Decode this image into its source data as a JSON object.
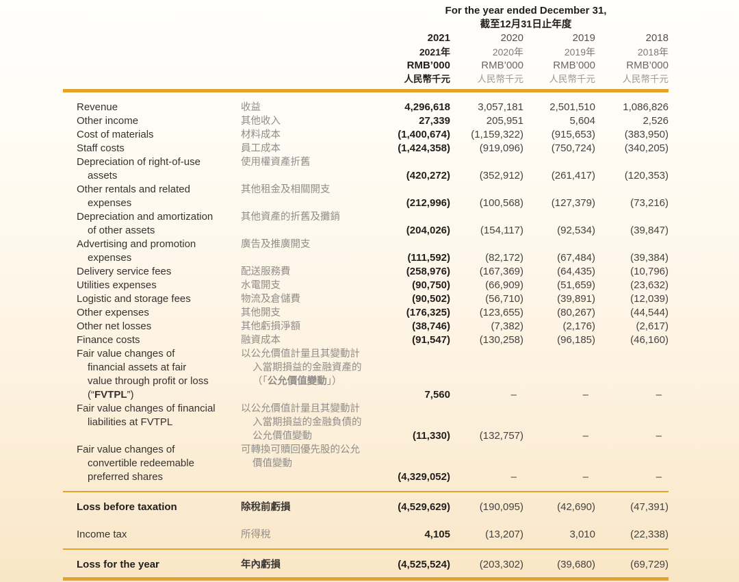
{
  "theme": {
    "accent": "#E0A42C",
    "bg_top": "#FFFFFE",
    "bg_mid": "#FDF3E2",
    "bg_bottom": "#F9E6C6"
  },
  "header": {
    "title_en": "For the year ended December 31,",
    "title_zh": "截至12月31日止年度",
    "columns": [
      {
        "year": "2021",
        "year_zh": "2021年",
        "unit": "RMB’000",
        "unit_zh": "人民幣千元",
        "bold": true
      },
      {
        "year": "2020",
        "year_zh": "2020年",
        "unit": "RMB’000",
        "unit_zh": "人民幣千元",
        "bold": false
      },
      {
        "year": "2019",
        "year_zh": "2019年",
        "unit": "RMB’000",
        "unit_zh": "人民幣千元",
        "bold": false
      },
      {
        "year": "2018",
        "year_zh": "2018年",
        "unit": "RMB’000",
        "unit_zh": "人民幣千元",
        "bold": false
      }
    ]
  },
  "rows": [
    {
      "en": "Revenue",
      "zh": "收益",
      "values": [
        "4,296,618",
        "3,057,181",
        "2,501,510",
        "1,086,826"
      ]
    },
    {
      "en": "Other income",
      "zh": "其他收入",
      "values": [
        "27,339",
        "205,951",
        "5,604",
        "2,526"
      ]
    },
    {
      "en": "Cost of materials",
      "zh": "材料成本",
      "values": [
        "(1,400,674)",
        "(1,159,322)",
        "(915,653)",
        "(383,950)"
      ]
    },
    {
      "en": "Staff costs",
      "zh": "員工成本",
      "values": [
        "(1,424,358)",
        "(919,096)",
        "(750,724)",
        "(340,205)"
      ]
    },
    {
      "en": "Depreciation of right-of-use\nassets",
      "zh": "使用權資產折舊",
      "values": [
        "(420,272)",
        "(352,912)",
        "(261,417)",
        "(120,353)"
      ]
    },
    {
      "en": "Other rentals and related\nexpenses",
      "zh": "其他租金及相關開支",
      "values": [
        "(212,996)",
        "(100,568)",
        "(127,379)",
        "(73,216)"
      ]
    },
    {
      "en": "Depreciation and amortization\nof other assets",
      "zh": "其他資產的折舊及攤銷",
      "values": [
        "(204,026)",
        "(154,117)",
        "(92,534)",
        "(39,847)"
      ]
    },
    {
      "en": "Advertising and promotion\nexpenses",
      "zh": "廣告及推廣開支",
      "values": [
        "(111,592)",
        "(82,172)",
        "(67,484)",
        "(39,384)"
      ]
    },
    {
      "en": "Delivery service fees",
      "zh": "配送服務費",
      "values": [
        "(258,976)",
        "(167,369)",
        "(64,435)",
        "(10,796)"
      ]
    },
    {
      "en": "Utilities expenses",
      "zh": "水電開支",
      "values": [
        "(90,750)",
        "(66,909)",
        "(51,659)",
        "(23,632)"
      ]
    },
    {
      "en": "Logistic and storage fees",
      "zh": "物流及倉儲費",
      "values": [
        "(90,502)",
        "(56,710)",
        "(39,891)",
        "(12,039)"
      ]
    },
    {
      "en": "Other expenses",
      "zh": "其他開支",
      "values": [
        "(176,325)",
        "(123,655)",
        "(80,267)",
        "(44,544)"
      ]
    },
    {
      "en": "Other net losses",
      "zh": "其他虧損淨額",
      "values": [
        "(38,746)",
        "(7,382)",
        "(2,176)",
        "(2,617)"
      ]
    },
    {
      "en": "Finance costs",
      "zh": "融資成本",
      "values": [
        "(91,547)",
        "(130,258)",
        "(96,185)",
        "(46,160)"
      ]
    },
    {
      "en": "Fair value changes of\nfinancial assets at fair\nvalue through profit or loss\n(“**FVTPL**”)",
      "zh": "以公允價值計量且其變動計\n入當期損益的金融資產的\n（「**公允價值變動**」）",
      "values": [
        "7,560",
        "–",
        "–",
        "–"
      ]
    },
    {
      "en": "Fair value changes of financial\nliabilities at FVTPL",
      "zh": "以公允價值計量且其變動計\n入當期損益的金融負債的\n公允價值變動",
      "values": [
        "(11,330)",
        "(132,757)",
        "–",
        "–"
      ]
    },
    {
      "en": "Fair value changes of\nconvertible redeemable\npreferred shares",
      "zh": "可轉換可贖回優先股的公允\n價值變動",
      "values": [
        "(4,329,052)",
        "–",
        "–",
        "–"
      ]
    }
  ],
  "totals": {
    "loss_before_tax": {
      "en": "Loss before taxation",
      "zh": "除稅前虧損",
      "bold": true,
      "values": [
        "(4,529,629)",
        "(190,095)",
        "(42,690)",
        "(47,391)"
      ]
    },
    "income_tax": {
      "en": "Income tax",
      "zh": "所得稅",
      "bold": false,
      "values": [
        "4,105",
        "(13,207)",
        "3,010",
        "(22,338)"
      ]
    },
    "loss_for_year": {
      "en": "Loss for the year",
      "zh": "年內虧損",
      "bold": true,
      "values": [
        "(4,525,524)",
        "(203,302)",
        "(39,680)",
        "(69,729)"
      ]
    }
  }
}
